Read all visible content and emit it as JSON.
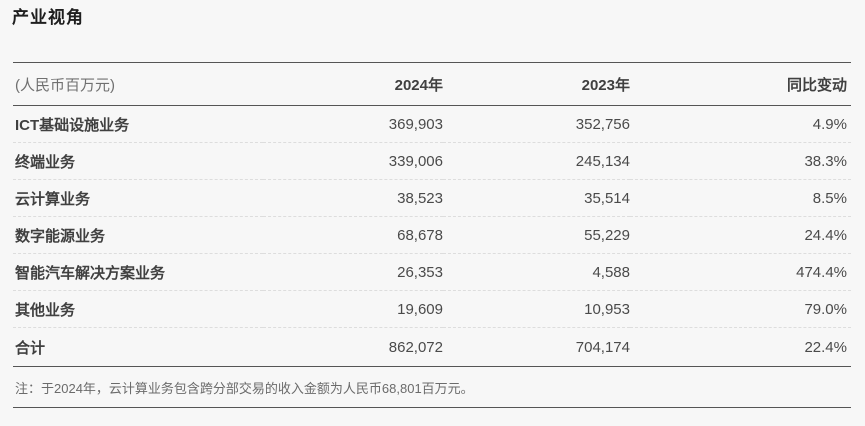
{
  "title": "产业视角",
  "table": {
    "unit_label": "(人民币百万元)",
    "columns": [
      "2024年",
      "2023年",
      "同比变动"
    ],
    "rows": [
      {
        "label": "ICT基础设施业务",
        "y2024": "369,903",
        "y2023": "352,756",
        "yoy": "4.9%"
      },
      {
        "label": "终端业务",
        "y2024": "339,006",
        "y2023": "245,134",
        "yoy": "38.3%"
      },
      {
        "label": "云计算业务",
        "y2024": "38,523",
        "y2023": "35,514",
        "yoy": "8.5%"
      },
      {
        "label": "数字能源业务",
        "y2024": "68,678",
        "y2023": "55,229",
        "yoy": "24.4%"
      },
      {
        "label": "智能汽车解决方案业务",
        "y2024": "26,353",
        "y2023": "4,588",
        "yoy": "474.4%"
      },
      {
        "label": "其他业务",
        "y2024": "19,609",
        "y2023": "10,953",
        "yoy": "79.0%"
      }
    ],
    "total": {
      "label": "合计",
      "y2024": "862,072",
      "y2023": "704,174",
      "yoy": "22.4%"
    }
  },
  "note": "注：于2024年，云计算业务包含跨分部交易的收入金额为人民币68,801百万元。",
  "colors": {
    "background": "#f7f7f7",
    "title_text": "#1f1f1f",
    "header_text": "#404040",
    "body_text": "#4a4a4a",
    "muted_text": "#707070",
    "rule_solid": "#555555",
    "rule_dashed": "#dddddd"
  }
}
